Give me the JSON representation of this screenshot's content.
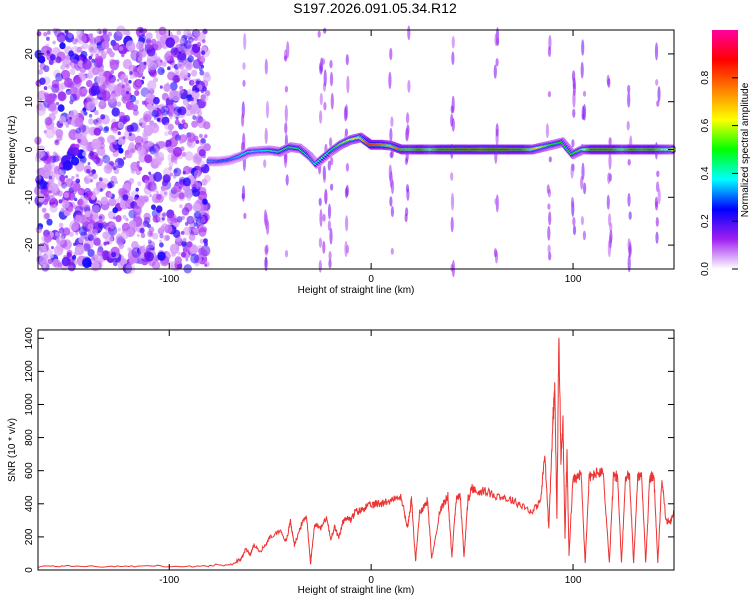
{
  "title": "S197.2026.091.05.34.R12",
  "chart_data": [
    {
      "type": "heatmap",
      "title": "S197.2026.091.05.34.R12",
      "xlabel": "Height of straight line (km)",
      "ylabel": "Frequency (Hz)",
      "xlim": [
        -165,
        150
      ],
      "ylim": [
        -25,
        25
      ],
      "xticks": [
        -100,
        0,
        100
      ],
      "yticks": [
        -20,
        -10,
        0,
        10,
        20
      ],
      "colorbar": {
        "label": "Normalized spectral amplitude",
        "range": [
          0,
          1
        ],
        "ticks": [
          0.0,
          0.2,
          0.4,
          0.6,
          0.8
        ],
        "colormap": [
          "#ffffff",
          "#a020f0",
          "#0000ff",
          "#00ffff",
          "#00ff00",
          "#ffff00",
          "#ff8000",
          "#ff0000",
          "#ff00a0"
        ]
      },
      "ridge": [
        {
          "x": -80,
          "y": -2.5,
          "a": 0.35
        },
        {
          "x": -75,
          "y": -2.5,
          "a": 0.3
        },
        {
          "x": -70,
          "y": -2.2,
          "a": 0.3
        },
        {
          "x": -65,
          "y": -1.5,
          "a": 0.35
        },
        {
          "x": -60,
          "y": -0.5,
          "a": 0.4
        },
        {
          "x": -55,
          "y": -0.3,
          "a": 0.35
        },
        {
          "x": -50,
          "y": -0.2,
          "a": 0.4
        },
        {
          "x": -45,
          "y": -0.5,
          "a": 0.45
        },
        {
          "x": -40,
          "y": 0.5,
          "a": 0.5
        },
        {
          "x": -35,
          "y": 0.2,
          "a": 0.45
        },
        {
          "x": -30,
          "y": -1.5,
          "a": 0.45
        },
        {
          "x": -27,
          "y": -3.0,
          "a": 0.4
        },
        {
          "x": -20,
          "y": -0.5,
          "a": 0.45
        },
        {
          "x": -15,
          "y": 1.0,
          "a": 0.55
        },
        {
          "x": -10,
          "y": 2.0,
          "a": 0.6
        },
        {
          "x": -5,
          "y": 2.5,
          "a": 0.65
        },
        {
          "x": 0,
          "y": 1.0,
          "a": 0.85
        },
        {
          "x": 5,
          "y": 1.0,
          "a": 0.8
        },
        {
          "x": 10,
          "y": 0.8,
          "a": 0.7
        },
        {
          "x": 15,
          "y": 0.0,
          "a": 0.8
        },
        {
          "x": 20,
          "y": 0.0,
          "a": 0.75
        },
        {
          "x": 25,
          "y": 0.0,
          "a": 0.85
        },
        {
          "x": 30,
          "y": 0.0,
          "a": 0.7
        },
        {
          "x": 35,
          "y": 0.0,
          "a": 0.85
        },
        {
          "x": 40,
          "y": 0.0,
          "a": 0.85
        },
        {
          "x": 45,
          "y": 0.0,
          "a": 0.9
        },
        {
          "x": 50,
          "y": 0.0,
          "a": 0.85
        },
        {
          "x": 55,
          "y": 0.0,
          "a": 0.95
        },
        {
          "x": 60,
          "y": 0.0,
          "a": 0.9
        },
        {
          "x": 65,
          "y": 0.0,
          "a": 0.9
        },
        {
          "x": 70,
          "y": 0.0,
          "a": 0.85
        },
        {
          "x": 75,
          "y": 0.0,
          "a": 0.85
        },
        {
          "x": 80,
          "y": 0.0,
          "a": 0.7
        },
        {
          "x": 85,
          "y": 0.5,
          "a": 0.6
        },
        {
          "x": 90,
          "y": 1.0,
          "a": 0.5
        },
        {
          "x": 95,
          "y": 1.5,
          "a": 0.5
        },
        {
          "x": 100,
          "y": -1.0,
          "a": 0.5
        },
        {
          "x": 105,
          "y": 0.0,
          "a": 0.55
        },
        {
          "x": 110,
          "y": 0.0,
          "a": 0.85
        },
        {
          "x": 115,
          "y": 0.0,
          "a": 0.85
        },
        {
          "x": 120,
          "y": 0.0,
          "a": 0.85
        },
        {
          "x": 125,
          "y": 0.0,
          "a": 0.7
        },
        {
          "x": 130,
          "y": 0.0,
          "a": 0.85
        },
        {
          "x": 135,
          "y": 0.0,
          "a": 0.8
        },
        {
          "x": 140,
          "y": 0.0,
          "a": 0.85
        },
        {
          "x": 145,
          "y": 0.0,
          "a": 0.7
        },
        {
          "x": 150,
          "y": 0.0,
          "a": 0.6
        }
      ]
    },
    {
      "type": "line",
      "title": "",
      "xlabel": "Height of straight line (km)",
      "ylabel": "SNR (10 * v/v)",
      "xlim": [
        -165,
        150
      ],
      "ylim": [
        0,
        1450
      ],
      "xticks": [
        -100,
        0,
        100
      ],
      "yticks": [
        0,
        200,
        400,
        600,
        800,
        1000,
        1200,
        1400
      ],
      "color": "#ee3333",
      "x": [
        -165,
        -150,
        -130,
        -110,
        -90,
        -80,
        -70,
        -65,
        -62,
        -60,
        -58,
        -55,
        -52,
        -50,
        -45,
        -42,
        -40,
        -38,
        -35,
        -32,
        -30,
        -28,
        -25,
        -22,
        -20,
        -18,
        -16,
        -14,
        -12,
        -10,
        -8,
        -5,
        -3,
        0,
        3,
        6,
        10,
        15,
        18,
        20,
        22,
        24,
        26,
        28,
        30,
        34,
        36,
        38,
        40,
        42,
        44,
        46,
        48,
        50,
        52,
        55,
        60,
        65,
        70,
        75,
        80,
        84,
        86,
        88,
        90,
        91,
        92,
        93,
        94,
        95,
        96,
        97,
        98,
        100,
        102,
        104,
        106,
        108,
        110,
        112,
        115,
        118,
        120,
        122,
        124,
        126,
        128,
        130,
        132,
        134,
        136,
        138,
        140,
        142,
        144,
        146,
        148,
        150
      ],
      "y": [
        20,
        25,
        20,
        25,
        20,
        25,
        30,
        60,
        130,
        90,
        150,
        110,
        160,
        200,
        240,
        170,
        300,
        150,
        260,
        330,
        40,
        280,
        250,
        320,
        180,
        260,
        190,
        290,
        320,
        300,
        350,
        360,
        380,
        390,
        400,
        410,
        420,
        440,
        250,
        430,
        50,
        350,
        380,
        420,
        60,
        360,
        400,
        450,
        80,
        420,
        470,
        80,
        430,
        500,
        470,
        480,
        460,
        440,
        420,
        390,
        350,
        420,
        700,
        250,
        900,
        1100,
        300,
        1450,
        650,
        900,
        200,
        700,
        100,
        550,
        560,
        580,
        40,
        560,
        570,
        590,
        580,
        40,
        560,
        570,
        40,
        560,
        570,
        40,
        560,
        570,
        40,
        560,
        570,
        40,
        560,
        300,
        280,
        350
      ]
    }
  ]
}
